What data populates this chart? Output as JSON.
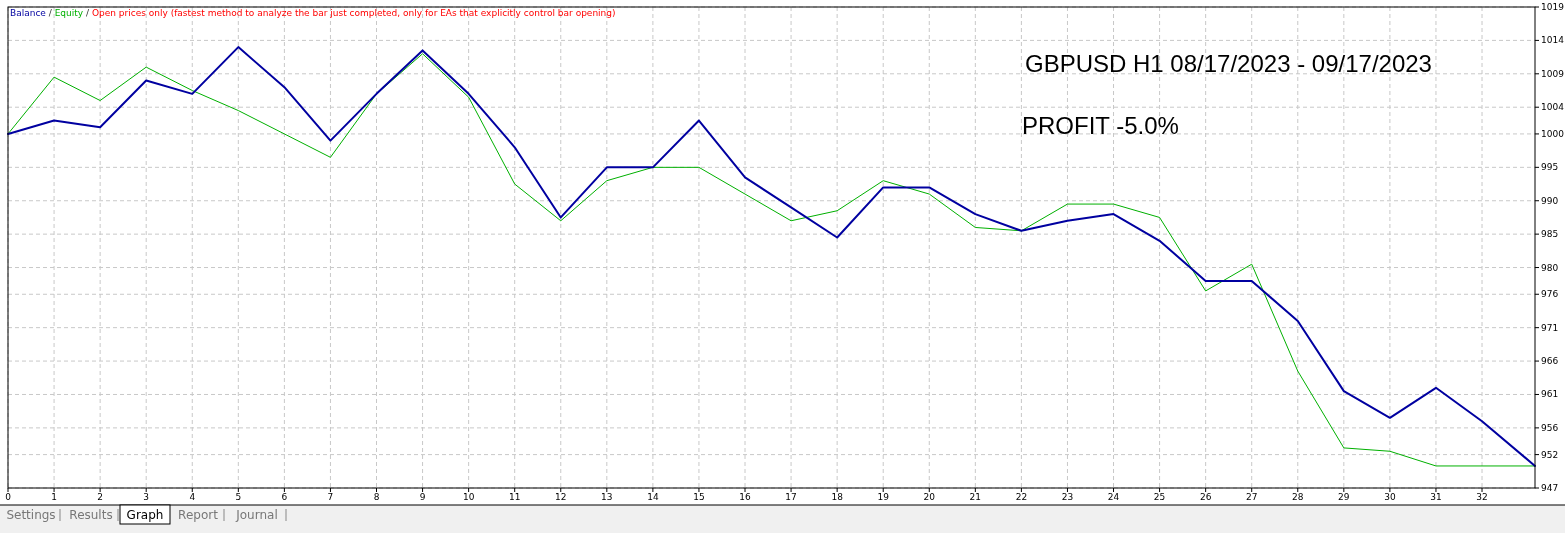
{
  "chart_data": {
    "type": "line",
    "x": [
      0,
      1,
      2,
      3,
      4,
      5,
      6,
      7,
      8,
      9,
      10,
      11,
      12,
      13,
      14,
      15,
      16,
      17,
      18,
      19,
      20,
      21,
      22,
      23,
      24,
      25,
      26,
      27,
      28,
      29,
      30,
      31,
      32,
      33.15
    ],
    "series": [
      {
        "name": "Equity",
        "color": "#00b000",
        "values": [
          1000,
          1008.5,
          1005,
          1010,
          1006.5,
          1003.5,
          1000,
          996.5,
          1006,
          1012,
          1005.5,
          992.5,
          987,
          993,
          995,
          995,
          991,
          987,
          988.5,
          993,
          991,
          986,
          985.5,
          989.5,
          989.5,
          987.5,
          976.5,
          980.5,
          964.5,
          953,
          952.5,
          950.3,
          950.3,
          950.3
        ]
      },
      {
        "name": "Balance",
        "color": "#0000a0",
        "values": [
          1000,
          1002,
          1001,
          1008,
          1006,
          1013,
          1007,
          999,
          1006,
          1012.5,
          1006,
          998,
          987.5,
          995,
          995,
          1002,
          993.5,
          989,
          984.5,
          992,
          992,
          988,
          985.5,
          987,
          988,
          984,
          978,
          978,
          972,
          961.5,
          957.5,
          962,
          957,
          950.3
        ]
      }
    ],
    "xlim": [
      0,
      33.15
    ],
    "xticks": [
      0,
      1,
      2,
      3,
      4,
      5,
      6,
      7,
      8,
      9,
      10,
      11,
      12,
      13,
      14,
      15,
      16,
      17,
      18,
      19,
      20,
      21,
      22,
      23,
      24,
      25,
      26,
      27,
      28,
      29,
      30,
      31,
      32
    ],
    "ylim": [
      947,
      1019
    ],
    "yticks": [
      947,
      952,
      956,
      961,
      966,
      971,
      976,
      980,
      985,
      990,
      995,
      1000,
      1004,
      1009,
      1014,
      1019
    ],
    "grid": true,
    "legend": "top left",
    "line_style": "solid",
    "marker": "none",
    "annotations": [
      "/",
      "Open prices only (fastest method to analyze the bar just completed, only for EAs that explicitly control bar opening)",
      "GBPUSD H1 08/17/2023 - 09/17/2023",
      "PROFIT -5.0%",
      "Settings",
      "Results",
      "Graph",
      "Report",
      "Journal"
    ]
  }
}
